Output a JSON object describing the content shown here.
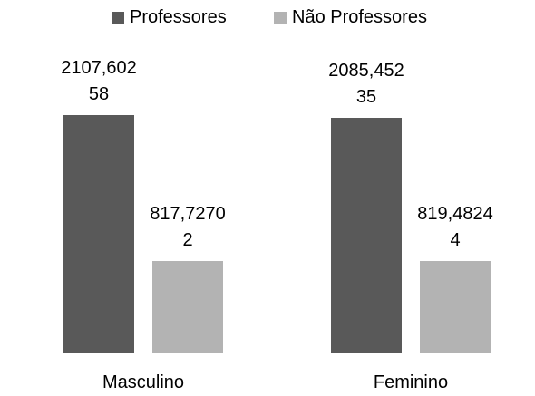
{
  "chart_data": {
    "type": "bar",
    "categories": [
      "Masculino",
      "Feminino"
    ],
    "series": [
      {
        "name": "Professores",
        "color": "#595959",
        "values": [
          2107.60258,
          2085.45235
        ],
        "value_labels": [
          "2107,60258",
          "2085,45235"
        ]
      },
      {
        "name": "Não Professores",
        "color": "#b3b3b3",
        "values": [
          817.72702,
          819.48244
        ],
        "value_labels": [
          "817,72702",
          "819,48244"
        ]
      }
    ]
  }
}
